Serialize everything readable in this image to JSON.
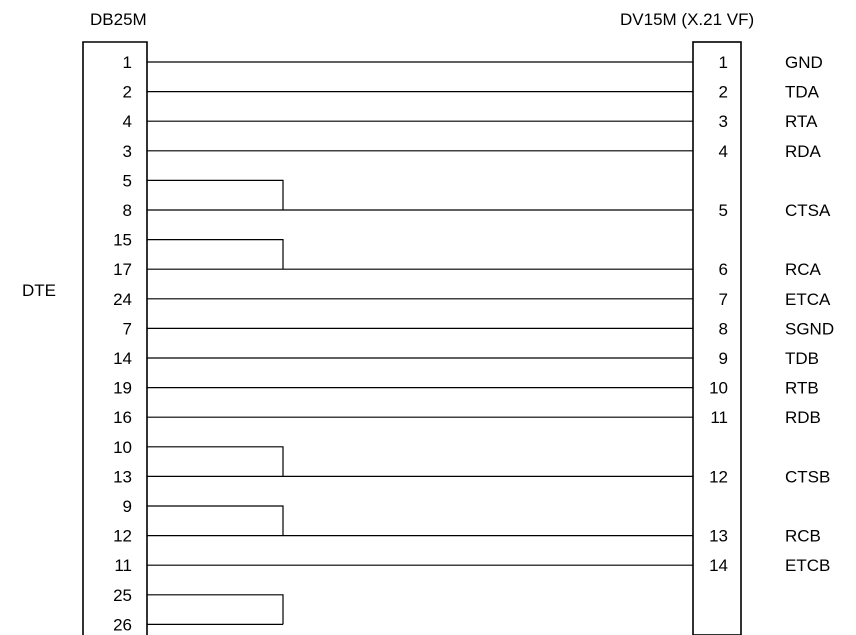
{
  "left_connector": {
    "title": "DB25M",
    "side_label": "DTE",
    "pins": [
      "1",
      "2",
      "4",
      "3",
      "5",
      "8",
      "15",
      "17",
      "24",
      "7",
      "14",
      "19",
      "16",
      "10",
      "13",
      "9",
      "12",
      "11",
      "25",
      "26"
    ]
  },
  "right_connector": {
    "title": "DV15M (X.21 VF)",
    "pins": [
      {
        "pin": "1",
        "signal": "GND"
      },
      {
        "pin": "2",
        "signal": "TDA"
      },
      {
        "pin": "3",
        "signal": "RTA"
      },
      {
        "pin": "4",
        "signal": "RDA"
      },
      {
        "pin": "5",
        "signal": "CTSA"
      },
      {
        "pin": "6",
        "signal": "RCA"
      },
      {
        "pin": "7",
        "signal": "ETCA"
      },
      {
        "pin": "8",
        "signal": "SGND"
      },
      {
        "pin": "9",
        "signal": "TDB"
      },
      {
        "pin": "10",
        "signal": "RTB"
      },
      {
        "pin": "11",
        "signal": "RDB"
      },
      {
        "pin": "12",
        "signal": "CTSB"
      },
      {
        "pin": "13",
        "signal": "RCB"
      },
      {
        "pin": "14",
        "signal": "ETCB"
      }
    ]
  },
  "connections": [
    {
      "from": "1",
      "to": "1"
    },
    {
      "from": "2",
      "to": "2"
    },
    {
      "from": "4",
      "to": "3"
    },
    {
      "from": "3",
      "to": "4"
    },
    {
      "from": "8",
      "to": "5"
    },
    {
      "from": "17",
      "to": "6"
    },
    {
      "from": "24",
      "to": "7"
    },
    {
      "from": "7",
      "to": "8"
    },
    {
      "from": "14",
      "to": "9"
    },
    {
      "from": "19",
      "to": "10"
    },
    {
      "from": "16",
      "to": "11"
    },
    {
      "from": "13",
      "to": "12"
    },
    {
      "from": "12",
      "to": "13"
    },
    {
      "from": "11",
      "to": "14"
    }
  ],
  "loopbacks": [
    {
      "pins": [
        "5",
        "8"
      ]
    },
    {
      "pins": [
        "15",
        "17"
      ]
    },
    {
      "pins": [
        "10",
        "13"
      ]
    },
    {
      "pins": [
        "9",
        "12"
      ]
    },
    {
      "pins": [
        "25",
        "26"
      ]
    }
  ]
}
